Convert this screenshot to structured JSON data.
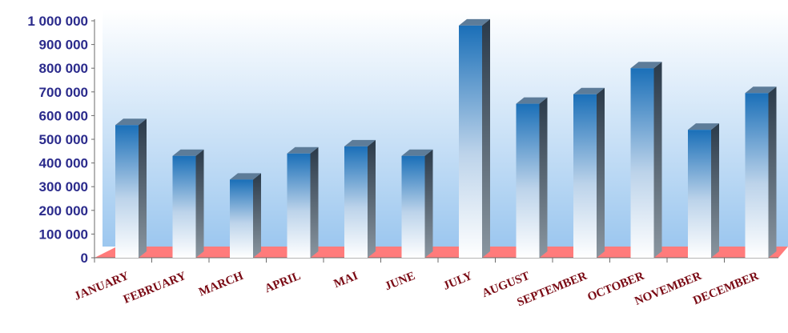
{
  "chart_data": {
    "type": "bar",
    "title": "",
    "xlabel": "",
    "ylabel": "",
    "categories": [
      "JANUARY",
      "FEBRUARY",
      "MARCH",
      "APRIL",
      "MAI",
      "JUNE",
      "JULY",
      "AUGUST",
      "SEPTEMBER",
      "OCTOBER",
      "NOVEMBER",
      "DECEMBER"
    ],
    "values": [
      560000,
      430000,
      330000,
      440000,
      470000,
      430000,
      980000,
      650000,
      690000,
      800000,
      540000,
      695000
    ],
    "ylim": [
      0,
      1000000
    ],
    "yticks": [
      0,
      100000,
      200000,
      300000,
      400000,
      500000,
      600000,
      700000,
      800000,
      900000,
      1000000
    ],
    "ytick_labels": [
      "0",
      "100 000",
      "200 000",
      "300 000",
      "400 000",
      "500 000",
      "600 000",
      "700 000",
      "800 000",
      "900 000",
      "1 000 000"
    ],
    "style": "3d-cylinder-bars",
    "grid": false,
    "legend": "none",
    "colors": {
      "bar_top": "#1a6fb8",
      "bar_bottom": "#ffffff",
      "bar_side": "#2a3a4a",
      "floor": "#ff7b7b",
      "background_top": "#ffffff",
      "background_bottom": "#9cc7ef",
      "ytick_text": "#2b2b8c",
      "xtick_text": "#7a0a14"
    }
  }
}
